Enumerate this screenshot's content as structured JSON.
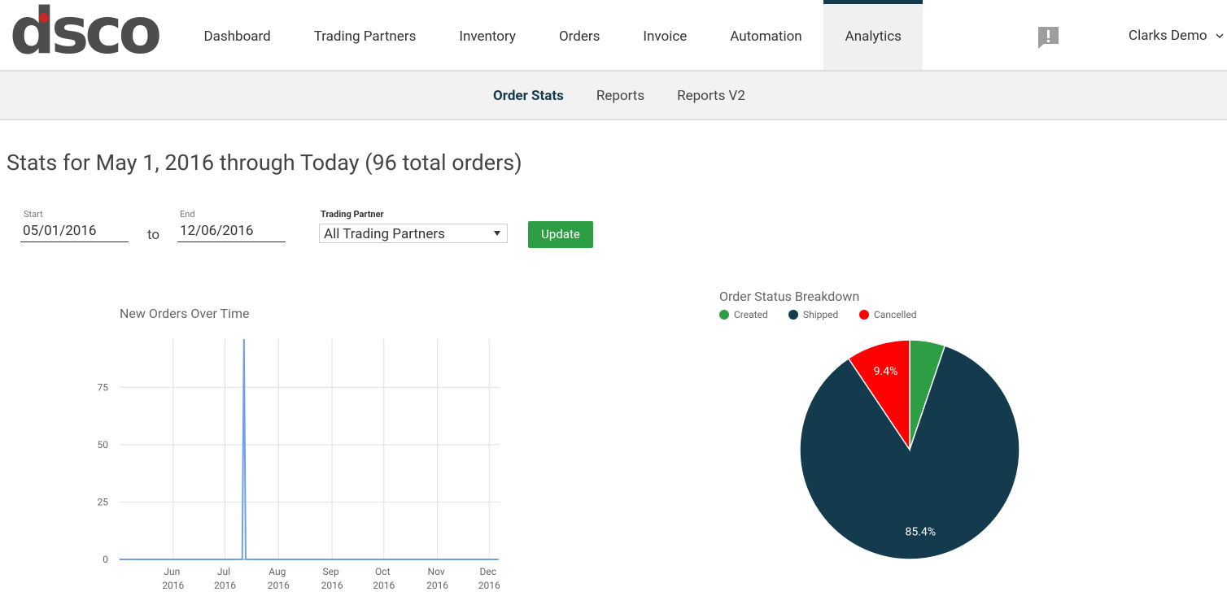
{
  "logo": "dsco",
  "nav": {
    "items": [
      "Dashboard",
      "Trading Partners",
      "Inventory",
      "Orders",
      "Invoice",
      "Automation",
      "Analytics"
    ],
    "active_index": 6
  },
  "user": "Clarks Demo",
  "subnav": {
    "items": [
      "Order Stats",
      "Reports",
      "Reports V2"
    ],
    "active_index": 0
  },
  "heading": "Stats for May 1, 2016 through Today (96 total orders)",
  "form": {
    "start_label": "Start",
    "start": "05/01/2016",
    "to": "to",
    "end_label": "End",
    "end": "12/06/2016",
    "partner_label": "Trading Partner",
    "partner": "All Trading Partners",
    "button": "Update"
  },
  "chart_data": [
    {
      "type": "line",
      "title": "New Orders Over Time",
      "x": [
        "2016-05-01",
        "2016-07-11",
        "2016-07-12",
        "2016-07-13",
        "2016-12-06"
      ],
      "series": [
        {
          "name": "New Orders",
          "color": "#6fa0e8",
          "values": [
            0,
            0,
            96,
            0,
            0
          ]
        }
      ],
      "xlim": [
        "2016-05-01",
        "2016-12-07"
      ],
      "xticks": [
        {
          "value": "2016-06-01",
          "label": "Jun 2016"
        },
        {
          "value": "2016-07-01",
          "label": "Jul 2016"
        },
        {
          "value": "2016-08-01",
          "label": "Aug 2016"
        },
        {
          "value": "2016-09-01",
          "label": "Sep 2016"
        },
        {
          "value": "2016-10-01",
          "label": "Oct 2016"
        },
        {
          "value": "2016-11-01",
          "label": "Nov 2016"
        },
        {
          "value": "2016-12-01",
          "label": "Dec 2016"
        }
      ],
      "ylim": [
        0,
        96
      ],
      "yticks": [
        0,
        25,
        50,
        75
      ],
      "grid": true
    },
    {
      "type": "pie",
      "title": "Order Status Breakdown",
      "categories": [
        "Created",
        "Shipped",
        "Cancelled"
      ],
      "values": [
        5.2,
        85.4,
        9.4
      ],
      "value_labels": [
        null,
        "85.4%",
        "9.4%"
      ],
      "colors": [
        "#2e9e44",
        "#133a4d",
        "#ff0000"
      ],
      "legend": "top"
    }
  ]
}
